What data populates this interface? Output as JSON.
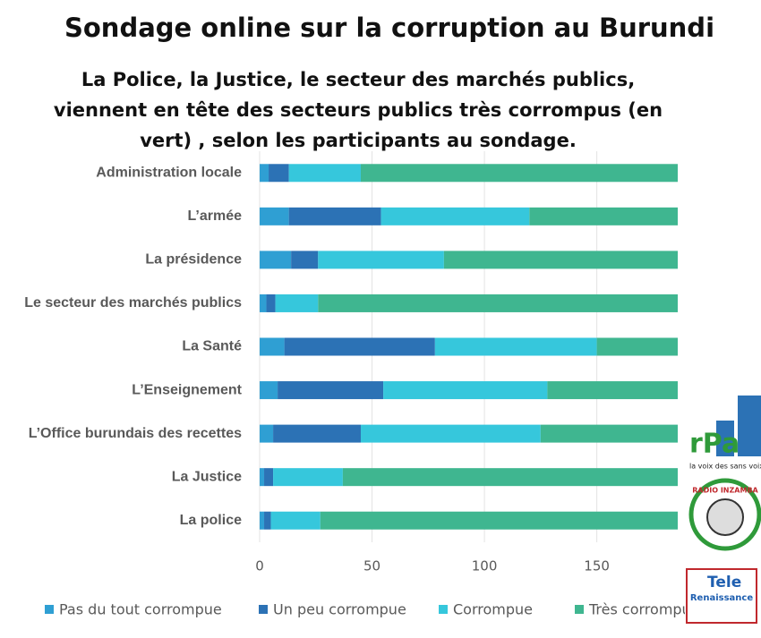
{
  "chart_data": {
    "type": "stacked-barh",
    "title": "Sondage online sur la corruption au Burundi",
    "subtitle": "La Police, la Justice, le secteur des marchés publics, viennent en tête des secteurs publics très corrompus (en vert) , selon les participants au sondage.",
    "categories": [
      "Administration locale",
      "L’armée",
      "La présidence",
      "Le secteur des marchés publics",
      "La Santé",
      "L’Enseignement",
      "L’Office burundais des recettes",
      "La Justice",
      "La police"
    ],
    "series": [
      {
        "name": "Pas du tout corrompue",
        "color": "#2f9fd3",
        "values": [
          4,
          13,
          14,
          3,
          11,
          8,
          6,
          2,
          2
        ]
      },
      {
        "name": "Un peu corrompue",
        "color": "#2c72b5",
        "values": [
          9,
          41,
          12,
          4,
          67,
          47,
          39,
          4,
          3
        ]
      },
      {
        "name": "Corrompue",
        "color": "#36c7dc",
        "values": [
          32,
          66,
          56,
          19,
          72,
          73,
          80,
          31,
          22
        ]
      },
      {
        "name": "Très corrompue",
        "color": "#3fb690",
        "values": [
          141,
          66,
          104,
          160,
          36,
          58,
          61,
          149,
          159
        ]
      }
    ],
    "xlim": [
      0,
      186
    ],
    "xticks": [
      0,
      50,
      100,
      150
    ],
    "grid": true
  },
  "logos": {
    "rpa": "rPa",
    "rpa_slogan": "la voix des sans voix",
    "inzamba": "RADIO INZAMBA",
    "tele": "Tele",
    "renaissance": "Renaissance"
  }
}
